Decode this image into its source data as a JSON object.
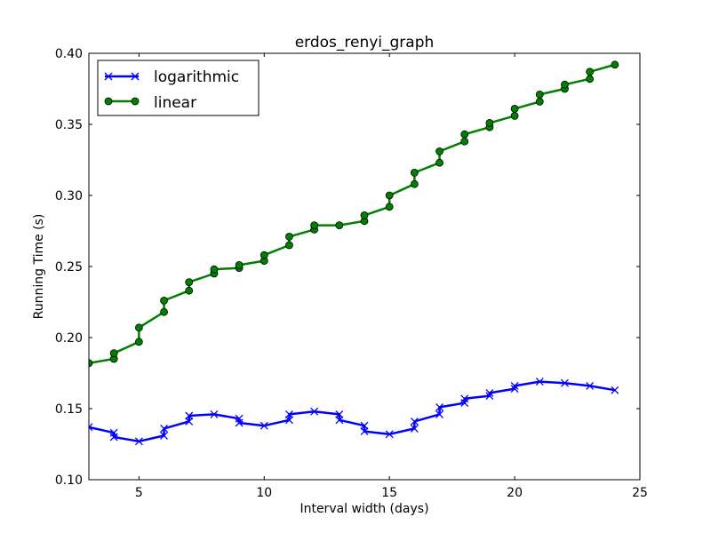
{
  "chart_data": {
    "type": "line",
    "title": "erdos_renyi_graph",
    "xlabel": "Interval width (days)",
    "ylabel": "Running Time (s)",
    "xlim": [
      3,
      25
    ],
    "ylim": [
      0.1,
      0.4
    ],
    "xticks": [
      5,
      10,
      15,
      20,
      25
    ],
    "yticks": [
      0.1,
      0.15,
      0.2,
      0.25,
      0.3,
      0.35,
      0.4
    ],
    "xtick_labels": [
      "5",
      "10",
      "15",
      "20",
      "25"
    ],
    "ytick_labels": [
      "0.10",
      "0.15",
      "0.20",
      "0.25",
      "0.30",
      "0.35",
      "0.40"
    ],
    "grid": false,
    "legend_position": "top-left",
    "series": [
      {
        "name": "logarithmic",
        "color": "#0000ff",
        "marker": "x",
        "points": [
          [
            3,
            0.137
          ],
          [
            4,
            0.133
          ],
          [
            4,
            0.13
          ],
          [
            5,
            0.127
          ],
          [
            6,
            0.131
          ],
          [
            6,
            0.136
          ],
          [
            7,
            0.141
          ],
          [
            7,
            0.145
          ],
          [
            8,
            0.146
          ],
          [
            9,
            0.143
          ],
          [
            9,
            0.14
          ],
          [
            10,
            0.138
          ],
          [
            11,
            0.142
          ],
          [
            11,
            0.146
          ],
          [
            12,
            0.148
          ],
          [
            13,
            0.146
          ],
          [
            13,
            0.142
          ],
          [
            14,
            0.138
          ],
          [
            14,
            0.134
          ],
          [
            15,
            0.132
          ],
          [
            16,
            0.136
          ],
          [
            16,
            0.141
          ],
          [
            17,
            0.146
          ],
          [
            17,
            0.151
          ],
          [
            18,
            0.154
          ],
          [
            18,
            0.157
          ],
          [
            19,
            0.159
          ],
          [
            19,
            0.161
          ],
          [
            20,
            0.164
          ],
          [
            20,
            0.166
          ],
          [
            21,
            0.169
          ],
          [
            22,
            0.168
          ],
          [
            23,
            0.166
          ],
          [
            24,
            0.163
          ]
        ]
      },
      {
        "name": "linear",
        "color": "#008000",
        "marker": "o",
        "points": [
          [
            3,
            0.182
          ],
          [
            4,
            0.185
          ],
          [
            4,
            0.189
          ],
          [
            5,
            0.197
          ],
          [
            5,
            0.207
          ],
          [
            6,
            0.218
          ],
          [
            6,
            0.226
          ],
          [
            7,
            0.233
          ],
          [
            7,
            0.239
          ],
          [
            8,
            0.245
          ],
          [
            8,
            0.248
          ],
          [
            9,
            0.249
          ],
          [
            9,
            0.251
          ],
          [
            10,
            0.254
          ],
          [
            10,
            0.258
          ],
          [
            11,
            0.265
          ],
          [
            11,
            0.271
          ],
          [
            12,
            0.276
          ],
          [
            12,
            0.279
          ],
          [
            13,
            0.279
          ],
          [
            14,
            0.282
          ],
          [
            14,
            0.286
          ],
          [
            15,
            0.292
          ],
          [
            15,
            0.3
          ],
          [
            16,
            0.308
          ],
          [
            16,
            0.316
          ],
          [
            17,
            0.323
          ],
          [
            17,
            0.331
          ],
          [
            18,
            0.338
          ],
          [
            18,
            0.343
          ],
          [
            19,
            0.348
          ],
          [
            19,
            0.351
          ],
          [
            20,
            0.356
          ],
          [
            20,
            0.361
          ],
          [
            21,
            0.366
          ],
          [
            21,
            0.371
          ],
          [
            22,
            0.375
          ],
          [
            22,
            0.378
          ],
          [
            23,
            0.382
          ],
          [
            23,
            0.387
          ],
          [
            24,
            0.392
          ]
        ]
      }
    ]
  }
}
